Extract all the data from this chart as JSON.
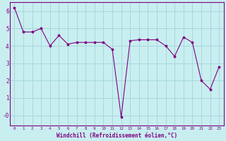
{
  "x": [
    0,
    1,
    2,
    3,
    4,
    5,
    6,
    7,
    8,
    9,
    10,
    11,
    12,
    13,
    14,
    15,
    16,
    17,
    18,
    19,
    20,
    21,
    22,
    23
  ],
  "y": [
    6.2,
    4.8,
    4.8,
    5.0,
    4.0,
    4.6,
    4.1,
    4.2,
    4.2,
    4.2,
    4.2,
    3.8,
    -0.1,
    4.3,
    4.35,
    4.35,
    4.35,
    4.0,
    3.4,
    4.5,
    4.2,
    2.0,
    1.5,
    2.8
  ],
  "line_color": "#800080",
  "marker": "*",
  "marker_size": 3,
  "bg_color": "#c8eef0",
  "grid_color": "#a8d8dc",
  "xlabel": "Windchill (Refroidissement éolien,°C)",
  "xlabel_color": "#800080",
  "tick_color": "#800080",
  "xlim": [
    -0.5,
    23.5
  ],
  "ylim": [
    -0.6,
    6.5
  ],
  "yticks": [
    0,
    1,
    2,
    3,
    4,
    5,
    6
  ],
  "ytick_labels": [
    "-0",
    "1",
    "2",
    "3",
    "4",
    "5",
    "6"
  ],
  "xticks": [
    0,
    1,
    2,
    3,
    4,
    5,
    6,
    7,
    8,
    9,
    10,
    11,
    12,
    13,
    14,
    15,
    16,
    17,
    18,
    19,
    20,
    21,
    22,
    23
  ]
}
